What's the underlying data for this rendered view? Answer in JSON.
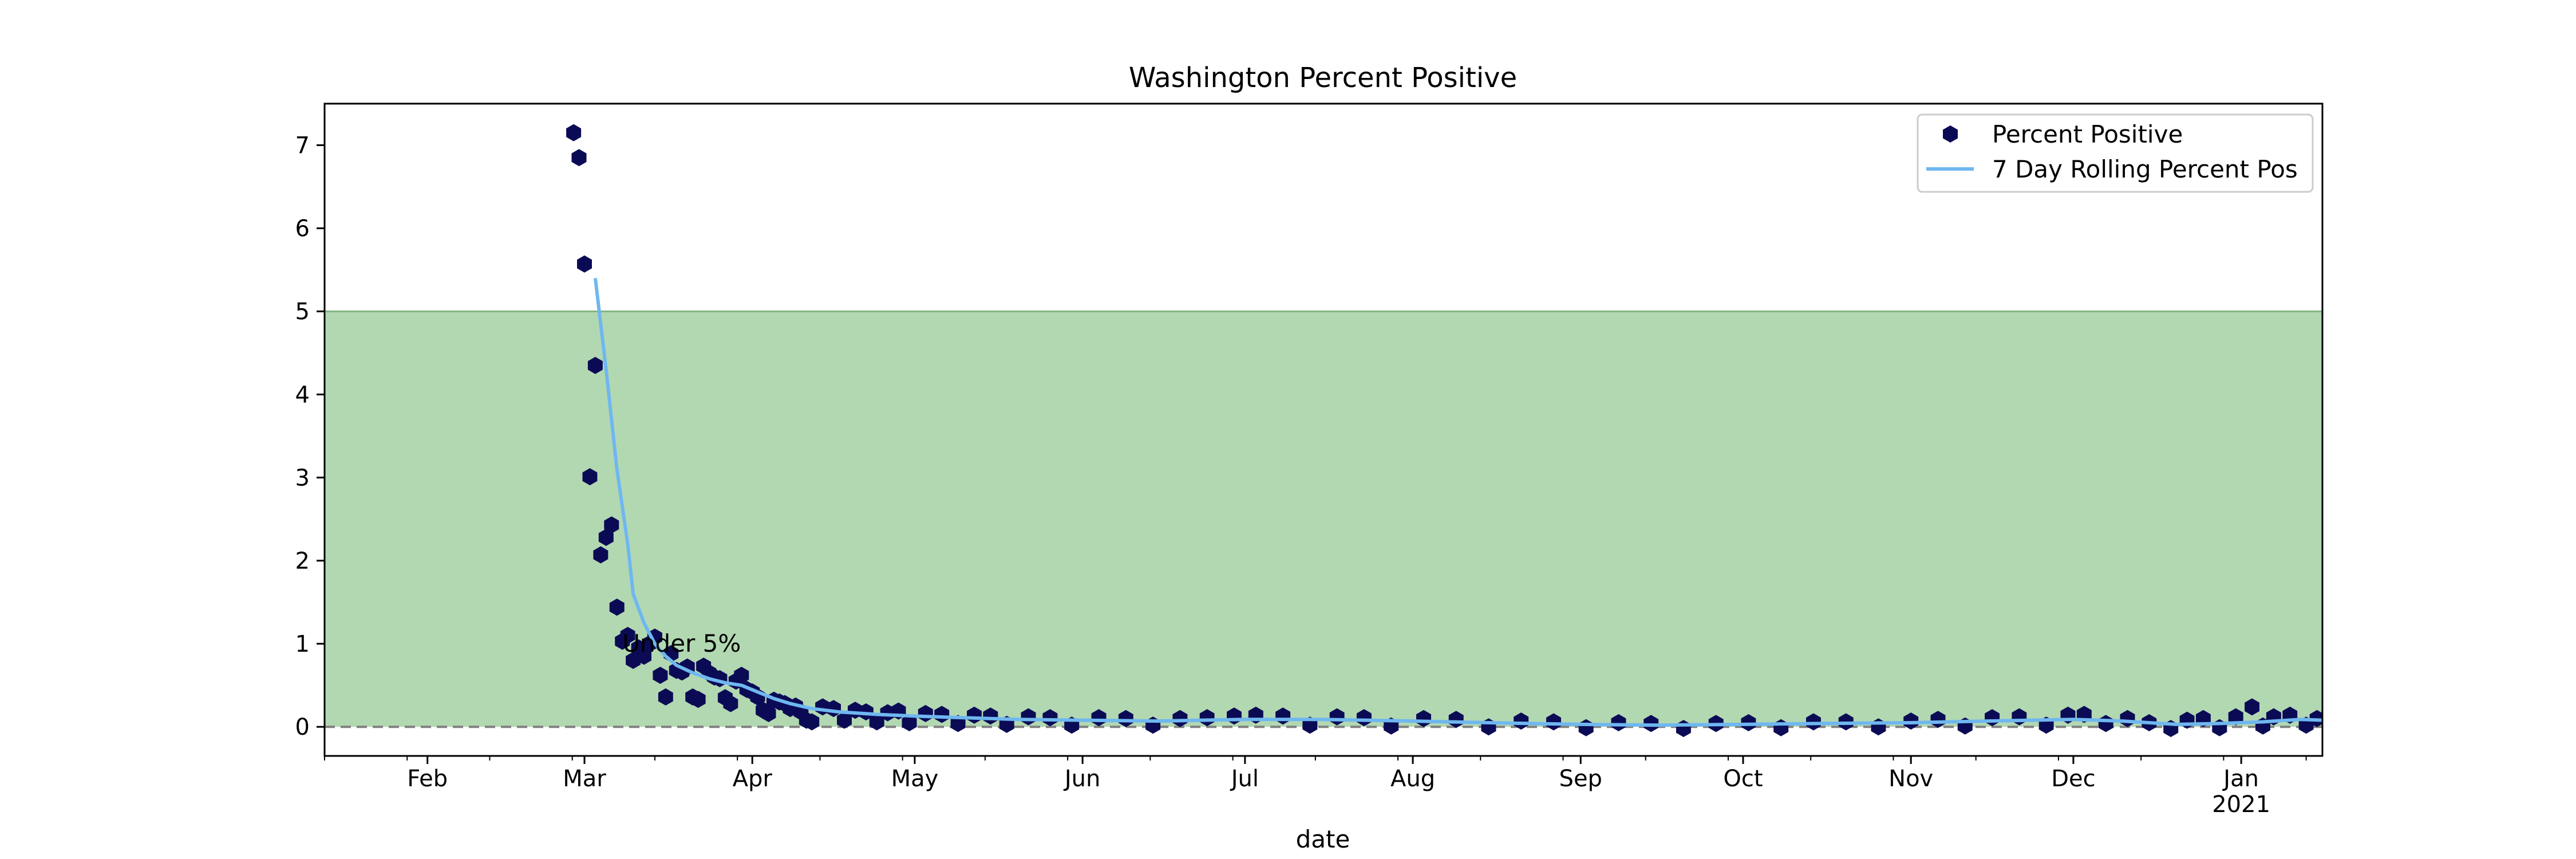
{
  "chart_data": {
    "type": "scatter",
    "title": "Washington Percent Positive",
    "xlabel": "date",
    "ylabel": "",
    "x_range": [
      "2020-01-13",
      "2021-01-16"
    ],
    "ylim": [
      -0.35,
      7.5
    ],
    "y_ticks": [
      0,
      1,
      2,
      3,
      4,
      5,
      6,
      7
    ],
    "x_ticks": [
      {
        "date": "2020-02-01",
        "label": "Feb",
        "sub": ""
      },
      {
        "date": "2020-03-01",
        "label": "Mar",
        "sub": ""
      },
      {
        "date": "2020-04-01",
        "label": "Apr",
        "sub": ""
      },
      {
        "date": "2020-05-01",
        "label": "May",
        "sub": ""
      },
      {
        "date": "2020-06-01",
        "label": "Jun",
        "sub": ""
      },
      {
        "date": "2020-07-01",
        "label": "Jul",
        "sub": ""
      },
      {
        "date": "2020-08-01",
        "label": "Aug",
        "sub": ""
      },
      {
        "date": "2020-09-01",
        "label": "Sep",
        "sub": ""
      },
      {
        "date": "2020-10-01",
        "label": "Oct",
        "sub": ""
      },
      {
        "date": "2020-11-01",
        "label": "Nov",
        "sub": ""
      },
      {
        "date": "2020-12-01",
        "label": "Dec",
        "sub": ""
      },
      {
        "date": "2021-01-01",
        "label": "Jan",
        "sub": "2021"
      }
    ],
    "shaded_band": {
      "y_from": 0,
      "y_to": 5,
      "color": "#b2d8b2",
      "edge_color": "#7fb57f"
    },
    "reference_line": {
      "y": 0,
      "style": "dashed",
      "color": "#808080"
    },
    "annotation": {
      "text": "Under 5%",
      "x": "2020-03-08",
      "y": 1.0
    },
    "legend": {
      "position": "top-right"
    },
    "grid": false,
    "series": [
      {
        "name": "Percent Positive",
        "kind": "scatter",
        "marker": "hexagon",
        "color": "#0b0b55",
        "points": [
          [
            "2020-02-28",
            7.15
          ],
          [
            "2020-02-29",
            6.85
          ],
          [
            "2020-03-01",
            5.57
          ],
          [
            "2020-03-02",
            3.01
          ],
          [
            "2020-03-03",
            4.35
          ],
          [
            "2020-03-04",
            2.07
          ],
          [
            "2020-03-05",
            2.28
          ],
          [
            "2020-03-06",
            2.43
          ],
          [
            "2020-03-07",
            1.44
          ],
          [
            "2020-03-08",
            1.03
          ],
          [
            "2020-03-09",
            1.1
          ],
          [
            "2020-03-10",
            0.8
          ],
          [
            "2020-03-11",
            0.95
          ],
          [
            "2020-03-12",
            0.85
          ],
          [
            "2020-03-13",
            1.0
          ],
          [
            "2020-03-14",
            1.08
          ],
          [
            "2020-03-15",
            0.62
          ],
          [
            "2020-03-16",
            0.36
          ],
          [
            "2020-03-17",
            0.88
          ],
          [
            "2020-03-18",
            0.68
          ],
          [
            "2020-03-19",
            0.66
          ],
          [
            "2020-03-20",
            0.72
          ],
          [
            "2020-03-21",
            0.36
          ],
          [
            "2020-03-22",
            0.33
          ],
          [
            "2020-03-23",
            0.73
          ],
          [
            "2020-03-24",
            0.65
          ],
          [
            "2020-03-25",
            0.6
          ],
          [
            "2020-03-26",
            0.58
          ],
          [
            "2020-03-27",
            0.35
          ],
          [
            "2020-03-28",
            0.28
          ],
          [
            "2020-03-29",
            0.55
          ],
          [
            "2020-03-30",
            0.62
          ],
          [
            "2020-03-31",
            0.45
          ],
          [
            "2020-04-01",
            0.42
          ],
          [
            "2020-04-02",
            0.36
          ],
          [
            "2020-04-03",
            0.2
          ],
          [
            "2020-04-04",
            0.16
          ],
          [
            "2020-04-05",
            0.32
          ],
          [
            "2020-04-06",
            0.3
          ],
          [
            "2020-04-07",
            0.28
          ],
          [
            "2020-04-08",
            0.22
          ],
          [
            "2020-04-09",
            0.25
          ],
          [
            "2020-04-10",
            0.18
          ],
          [
            "2020-04-11",
            0.08
          ],
          [
            "2020-04-12",
            0.06
          ],
          [
            "2020-04-14",
            0.24
          ],
          [
            "2020-04-16",
            0.22
          ],
          [
            "2020-04-18",
            0.08
          ],
          [
            "2020-04-20",
            0.2
          ],
          [
            "2020-04-22",
            0.18
          ],
          [
            "2020-04-24",
            0.06
          ],
          [
            "2020-04-26",
            0.17
          ],
          [
            "2020-04-28",
            0.19
          ],
          [
            "2020-04-30",
            0.05
          ],
          [
            "2020-05-03",
            0.16
          ],
          [
            "2020-05-06",
            0.15
          ],
          [
            "2020-05-09",
            0.04
          ],
          [
            "2020-05-12",
            0.14
          ],
          [
            "2020-05-15",
            0.13
          ],
          [
            "2020-05-18",
            0.03
          ],
          [
            "2020-05-22",
            0.12
          ],
          [
            "2020-05-26",
            0.11
          ],
          [
            "2020-05-30",
            0.02
          ],
          [
            "2020-06-04",
            0.11
          ],
          [
            "2020-06-09",
            0.1
          ],
          [
            "2020-06-14",
            0.02
          ],
          [
            "2020-06-19",
            0.1
          ],
          [
            "2020-06-24",
            0.11
          ],
          [
            "2020-06-29",
            0.13
          ],
          [
            "2020-07-03",
            0.14
          ],
          [
            "2020-07-08",
            0.13
          ],
          [
            "2020-07-13",
            0.02
          ],
          [
            "2020-07-18",
            0.12
          ],
          [
            "2020-07-23",
            0.11
          ],
          [
            "2020-07-28",
            0.01
          ],
          [
            "2020-08-03",
            0.1
          ],
          [
            "2020-08-09",
            0.09
          ],
          [
            "2020-08-15",
            0.0
          ],
          [
            "2020-08-21",
            0.07
          ],
          [
            "2020-08-27",
            0.06
          ],
          [
            "2020-09-02",
            -0.01
          ],
          [
            "2020-09-08",
            0.05
          ],
          [
            "2020-09-14",
            0.04
          ],
          [
            "2020-09-20",
            -0.02
          ],
          [
            "2020-09-26",
            0.04
          ],
          [
            "2020-10-02",
            0.05
          ],
          [
            "2020-10-08",
            -0.01
          ],
          [
            "2020-10-14",
            0.06
          ],
          [
            "2020-10-20",
            0.06
          ],
          [
            "2020-10-26",
            0.0
          ],
          [
            "2020-11-01",
            0.07
          ],
          [
            "2020-11-06",
            0.09
          ],
          [
            "2020-11-11",
            0.01
          ],
          [
            "2020-11-16",
            0.11
          ],
          [
            "2020-11-21",
            0.12
          ],
          [
            "2020-11-26",
            0.02
          ],
          [
            "2020-11-30",
            0.14
          ],
          [
            "2020-12-03",
            0.15
          ],
          [
            "2020-12-07",
            0.04
          ],
          [
            "2020-12-11",
            0.1
          ],
          [
            "2020-12-15",
            0.05
          ],
          [
            "2020-12-19",
            -0.02
          ],
          [
            "2020-12-22",
            0.08
          ],
          [
            "2020-12-25",
            0.1
          ],
          [
            "2020-12-28",
            -0.01
          ],
          [
            "2020-12-31",
            0.12
          ],
          [
            "2021-01-03",
            0.24
          ],
          [
            "2021-01-05",
            0.01
          ],
          [
            "2021-01-07",
            0.12
          ],
          [
            "2021-01-10",
            0.14
          ],
          [
            "2021-01-13",
            0.02
          ],
          [
            "2021-01-15",
            0.1
          ]
        ]
      },
      {
        "name": "7 Day Rolling Percent Pos",
        "kind": "line",
        "color": "#6fb7f0",
        "points": [
          [
            "2020-03-03",
            5.4
          ],
          [
            "2020-03-05",
            4.3
          ],
          [
            "2020-03-07",
            3.1
          ],
          [
            "2020-03-09",
            2.2
          ],
          [
            "2020-03-10",
            1.6
          ],
          [
            "2020-03-12",
            1.25
          ],
          [
            "2020-03-14",
            1.0
          ],
          [
            "2020-03-16",
            0.85
          ],
          [
            "2020-03-18",
            0.74
          ],
          [
            "2020-03-21",
            0.65
          ],
          [
            "2020-03-24",
            0.58
          ],
          [
            "2020-03-27",
            0.53
          ],
          [
            "2020-03-30",
            0.5
          ],
          [
            "2020-04-02",
            0.42
          ],
          [
            "2020-04-05",
            0.34
          ],
          [
            "2020-04-08",
            0.28
          ],
          [
            "2020-04-12",
            0.22
          ],
          [
            "2020-04-17",
            0.18
          ],
          [
            "2020-04-24",
            0.15
          ],
          [
            "2020-05-01",
            0.13
          ],
          [
            "2020-05-10",
            0.11
          ],
          [
            "2020-05-20",
            0.09
          ],
          [
            "2020-06-01",
            0.08
          ],
          [
            "2020-06-15",
            0.07
          ],
          [
            "2020-07-01",
            0.09
          ],
          [
            "2020-07-15",
            0.09
          ],
          [
            "2020-08-01",
            0.07
          ],
          [
            "2020-08-15",
            0.05
          ],
          [
            "2020-09-01",
            0.03
          ],
          [
            "2020-09-15",
            0.02
          ],
          [
            "2020-10-01",
            0.03
          ],
          [
            "2020-10-15",
            0.04
          ],
          [
            "2020-11-01",
            0.05
          ],
          [
            "2020-11-15",
            0.07
          ],
          [
            "2020-12-01",
            0.09
          ],
          [
            "2020-12-10",
            0.07
          ],
          [
            "2020-12-20",
            0.03
          ],
          [
            "2020-12-28",
            0.04
          ],
          [
            "2021-01-05",
            0.06
          ],
          [
            "2021-01-12",
            0.09
          ],
          [
            "2021-01-16",
            0.08
          ]
        ]
      }
    ]
  }
}
